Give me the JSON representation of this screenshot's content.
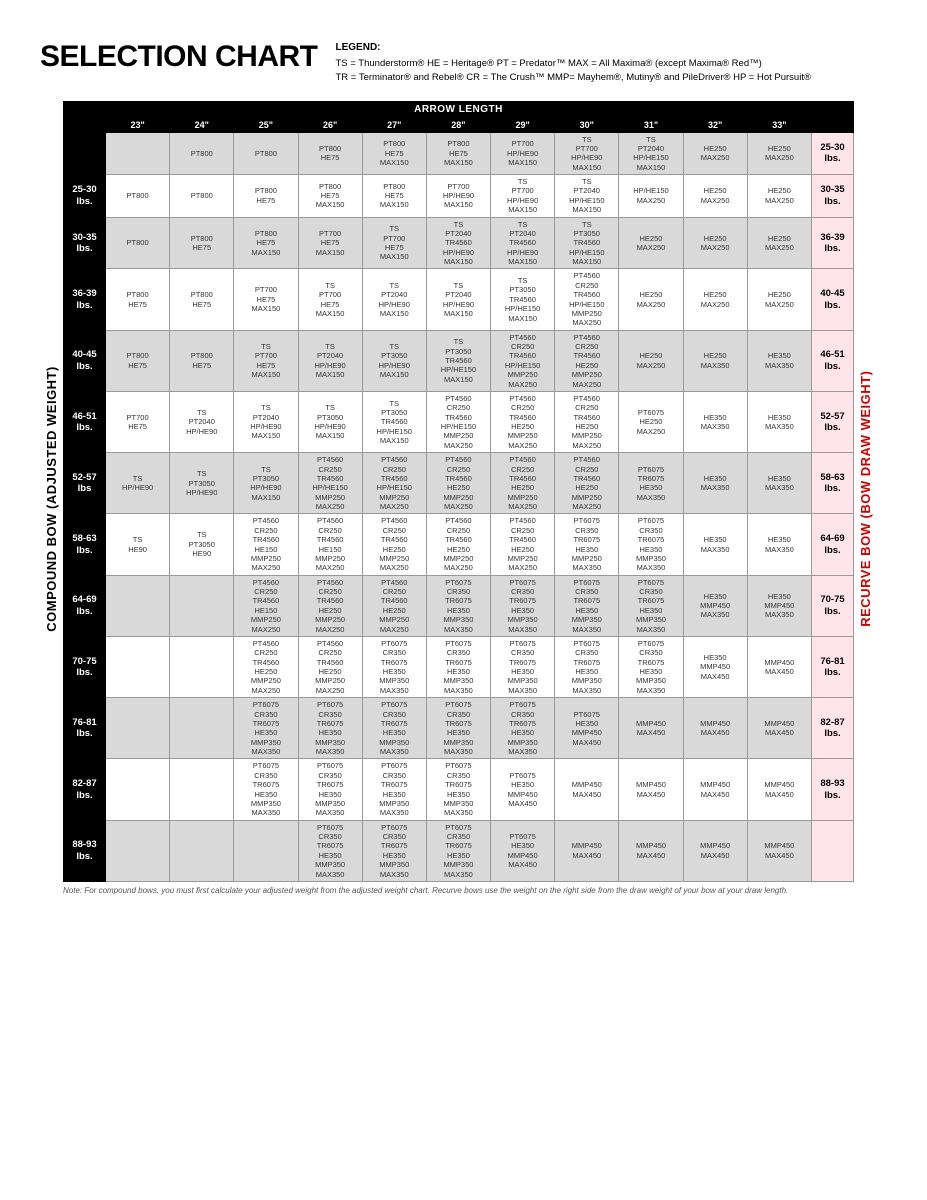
{
  "title": "SELECTION CHART",
  "legend": {
    "heading": "LEGEND:",
    "line1": "TS = Thunderstorm®   HE = Heritage®   PT = Predator™   MAX = All Maxima® (except Maxima® Red™)",
    "line2": "TR = Terminator® and Rebel®   CR = The Crush™   MMP= Mayhem®, Mutiny® and PileDriver®   HP = Hot Pursuit®"
  },
  "arrow_length_label": "ARROW LENGTH",
  "left_axis": "COMPOUND BOW (ADJUSTED WEIGHT)",
  "right_axis": "RECURVE BOW (BOW DRAW WEIGHT)",
  "lengths": [
    "23\"",
    "24\"",
    "25\"",
    "26\"",
    "27\"",
    "28\"",
    "29\"",
    "30\"",
    "31\"",
    "32\"",
    "33\""
  ],
  "rows": [
    {
      "left": "",
      "right": "25-30 lbs.",
      "shade": true,
      "cells": [
        "",
        "PT800",
        "PT800",
        "PT800\nHE75",
        "PT800\nHE75\nMAX150",
        "PT800\nHE75\nMAX150",
        "PT700\nHP/HE90\nMAX150",
        "TS\nPT700\nHP/HE90\nMAX150",
        "TS\nPT2040\nHP/HE150\nMAX150",
        "HE250\nMAX250",
        "HE250\nMAX250"
      ]
    },
    {
      "left": "25-30 lbs.",
      "right": "30-35 lbs.",
      "shade": false,
      "cells": [
        "PT800",
        "PT800",
        "PT800\nHE75",
        "PT800\nHE75\nMAX150",
        "PT800\nHE75\nMAX150",
        "PT700\nHP/HE90\nMAX150",
        "TS\nPT700\nHP/HE90\nMAX150",
        "TS\nPT2040\nHP/HE150\nMAX150",
        "HP/HE150\nMAX250",
        "HE250\nMAX250",
        "HE250\nMAX250"
      ]
    },
    {
      "left": "30-35 lbs.",
      "right": "36-39 lbs.",
      "shade": true,
      "cells": [
        "PT800",
        "PT800\nHE75",
        "PT800\nHE75\nMAX150",
        "PT700\nHE75\nMAX150",
        "TS\nPT700\nHE75\nMAX150",
        "TS\nPT2040\nTR4560\nHP/HE90\nMAX150",
        "TS\nPT2040\nTR4560\nHP/HE90\nMAX150",
        "TS\nPT3050\nTR4560\nHP/HE150\nMAX150",
        "HE250\nMAX250",
        "HE250\nMAX250",
        "HE250\nMAX250"
      ]
    },
    {
      "left": "36-39 lbs.",
      "right": "40-45 lbs.",
      "shade": false,
      "cells": [
        "PT800\nHE75",
        "PT800\nHE75",
        "PT700\nHE75\nMAX150",
        "TS\nPT700\nHE75\nMAX150",
        "TS\nPT2040\nHP/HE90\nMAX150",
        "TS\nPT2040\nHP/HE90\nMAX150",
        "TS\nPT3050\nTR4560\nHP/HE150\nMAX150",
        "PT4560\nCR250\nTR4560\nHP/HE150\nMMP250\nMAX250",
        "HE250\nMAX250",
        "HE250\nMAX250",
        "HE250\nMAX250"
      ]
    },
    {
      "left": "40-45 lbs.",
      "right": "46-51 lbs.",
      "shade": true,
      "cells": [
        "PT800\nHE75",
        "PT800\nHE75",
        "TS\nPT700\nHE75\nMAX150",
        "TS\nPT2040\nHP/HE90\nMAX150",
        "TS\nPT3050\nHP/HE90\nMAX150",
        "TS\nPT3050\nTR4560\nHP/HE150\nMAX150",
        "PT4560\nCR250\nTR4560\nHP/HE150\nMMP250\nMAX250",
        "PT4560\nCR250\nTR4560\nHE250\nMMP250\nMAX250",
        "HE250\nMAX250",
        "HE250\nMAX350",
        "HE350\nMAX350"
      ]
    },
    {
      "left": "46-51 lbs.",
      "right": "52-57 lbs.",
      "shade": false,
      "cells": [
        "PT700\nHE75",
        "TS\nPT2040\nHP/HE90",
        "TS\nPT2040\nHP/HE90\nMAX150",
        "TS\nPT3050\nHP/HE90\nMAX150",
        "TS\nPT3050\nTR4560\nHP/HE150\nMAX150",
        "PT4560\nCR250\nTR4560\nHP/HE150\nMMP250\nMAX250",
        "PT4560\nCR250\nTR4560\nHE250\nMMP250\nMAX250",
        "PT4560\nCR250\nTR4560\nHE250\nMMP250\nMAX250",
        "PT6075\nHE250\nMAX250",
        "HE350\nMAX350",
        "HE350\nMAX350"
      ]
    },
    {
      "left": "52-57 lbs",
      "right": "58-63 lbs.",
      "shade": true,
      "cells": [
        "TS\nHP/HE90",
        "TS\nPT3050\nHP/HE90",
        "TS\nPT3050\nHP/HE90\nMAX150",
        "PT4560\nCR250\nTR4560\nHP/HE150\nMMP250\nMAX250",
        "PT4560\nCR250\nTR4560\nHP/HE150\nMMP250\nMAX250",
        "PT4560\nCR250\nTR4560\nHE250\nMMP250\nMAX250",
        "PT4560\nCR250\nTR4560\nHE250\nMMP250\nMAX250",
        "PT4560\nCR250\nTR4560\nHE250\nMMP250\nMAX250",
        "PT6075\nTR6075\nHE350\nMAX350",
        "HE350\nMAX350",
        "HE350\nMAX350"
      ]
    },
    {
      "left": "58-63 lbs.",
      "right": "64-69 lbs.",
      "shade": false,
      "cells": [
        "TS\nHE90",
        "TS\nPT3050\nHE90",
        "PT4560\nCR250\nTR4560\nHE150\nMMP250\nMAX250",
        "PT4560\nCR250\nTR4560\nHE150\nMMP250\nMAX250",
        "PT4560\nCR250\nTR4560\nHE250\nMMP250\nMAX250",
        "PT4560\nCR250\nTR4560\nHE250\nMMP250\nMAX250",
        "PT4560\nCR250\nTR4560\nHE250\nMMP250\nMAX250",
        "PT6075\nCR350\nTR6075\nHE350\nMMP250\nMAX350",
        "PT6075\nCR350\nTR6075\nHE350\nMMP350\nMAX350",
        "HE350\nMAX350",
        "HE350\nMAX350"
      ]
    },
    {
      "left": "64-69 lbs.",
      "right": "70-75 lbs.",
      "shade": true,
      "cells": [
        "",
        "",
        "PT4560\nCR250\nTR4560\nHE150\nMMP250\nMAX250",
        "PT4560\nCR250\nTR4560\nHE250\nMMP250\nMAX250",
        "PT4560\nCR250\nTR4560\nHE250\nMMP250\nMAX250",
        "PT6075\nCR350\nTR6075\nHE350\nMMP350\nMAX350",
        "PT6075\nCR350\nTR6075\nHE350\nMMP350\nMAX350",
        "PT6075\nCR350\nTR6075\nHE350\nMMP350\nMAX350",
        "PT6075\nCR350\nTR6075\nHE350\nMMP350\nMAX350",
        "HE350\nMMP450\nMAX350",
        "HE350\nMMP450\nMAX350"
      ]
    },
    {
      "left": "70-75 lbs.",
      "right": "76-81 lbs.",
      "shade": false,
      "cells": [
        "",
        "",
        "PT4560\nCR250\nTR4560\nHE250\nMMP250\nMAX250",
        "PT4560\nCR250\nTR4560\nHE250\nMMP250\nMAX250",
        "PT6075\nCR350\nTR6075\nHE350\nMMP350\nMAX350",
        "PT6075\nCR350\nTR6075\nHE350\nMMP350\nMAX350",
        "PT6075\nCR350\nTR6075\nHE350\nMMP350\nMAX350",
        "PT6075\nCR350\nTR6075\nHE350\nMMP350\nMAX350",
        "PT6075\nCR350\nTR6075\nHE350\nMMP350\nMAX350",
        "HE350\nMMP450\nMAX450",
        "MMP450\nMAX450"
      ]
    },
    {
      "left": "76-81 lbs.",
      "right": "82-87 lbs.",
      "shade": true,
      "cells": [
        "",
        "",
        "PT6075\nCR350\nTR6075\nHE350\nMMP350\nMAX350",
        "PT6075\nCR350\nTR6075\nHE350\nMMP350\nMAX350",
        "PT6075\nCR350\nTR6075\nHE350\nMMP350\nMAX350",
        "PT6075\nCR350\nTR6075\nHE350\nMMP350\nMAX350",
        "PT6075\nCR350\nTR6075\nHE350\nMMP350\nMAX350",
        "PT6075\nHE350\nMMP450\nMAX450",
        "MMP450\nMAX450",
        "MMP450\nMAX450",
        "MMP450\nMAX450"
      ]
    },
    {
      "left": "82-87 lbs.",
      "right": "88-93 lbs.",
      "shade": false,
      "cells": [
        "",
        "",
        "PT6075\nCR350\nTR6075\nHE350\nMMP350\nMAX350",
        "PT6075\nCR350\nTR6075\nHE350\nMMP350\nMAX350",
        "PT6075\nCR350\nTR6075\nHE350\nMMP350\nMAX350",
        "PT6075\nCR350\nTR6075\nHE350\nMMP350\nMAX350",
        "PT6075\nHE350\nMMP450\nMAX450",
        "MMP450\nMAX450",
        "MMP450\nMAX450",
        "MMP450\nMAX450",
        "MMP450\nMAX450"
      ]
    },
    {
      "left": "88-93 lbs.",
      "right": "",
      "shade": true,
      "cells": [
        "",
        "",
        "",
        "PT6075\nCR350\nTR6075\nHE350\nMMP350\nMAX350",
        "PT6075\nCR350\nTR6075\nHE350\nMMP350\nMAX350",
        "PT6075\nCR350\nTR6075\nHE350\nMMP350\nMAX350",
        "PT6075\nHE350\nMMP450\nMAX450",
        "MMP450\nMAX450",
        "MMP450\nMAX450",
        "MMP450\nMAX450",
        "MMP450\nMAX450"
      ]
    }
  ],
  "note": "Note: For compound bows, you must first calculate your adjusted weight from the adjusted weight chart. Recurve bows use the weight on the right side from the draw weight of your bow at your draw length."
}
